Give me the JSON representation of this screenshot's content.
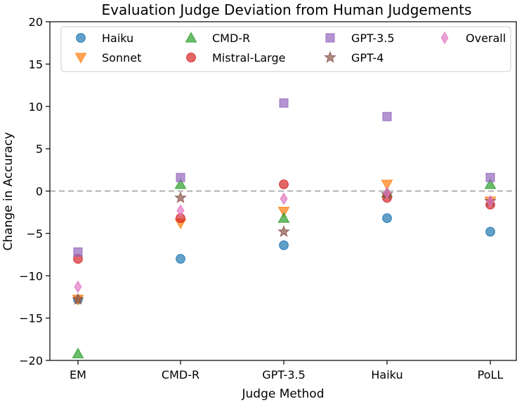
{
  "chart_data": {
    "type": "scatter",
    "title": "Evaluation Judge Deviation from Human Judgements",
    "xlabel": "Judge Method",
    "ylabel": "Change in Accuracy",
    "categories": [
      "EM",
      "CMD-R",
      "GPT-3.5",
      "Haiku",
      "PoLL"
    ],
    "ylim": [
      -20,
      20
    ],
    "yticks": [
      20,
      15,
      10,
      5,
      0,
      -5,
      -10,
      -15,
      -20
    ],
    "reference_line": 0,
    "grid": false,
    "legend_position": "top",
    "series": [
      {
        "name": "Haiku",
        "marker": "circle",
        "color": "#1f77b4",
        "values": [
          -12.8,
          -8.0,
          -6.4,
          -3.2,
          -4.8
        ]
      },
      {
        "name": "Sonnet",
        "marker": "triangle-down",
        "color": "#ff7f0e",
        "values": [
          -12.8,
          -3.8,
          -2.4,
          0.8,
          -1.2
        ]
      },
      {
        "name": "CMD-R",
        "marker": "triangle-up",
        "color": "#2ca02c",
        "values": [
          -19.2,
          0.8,
          -3.2,
          -0.2,
          0.8
        ]
      },
      {
        "name": "Mistral-Large",
        "marker": "circle",
        "color": "#d62728",
        "values": [
          -8.0,
          -3.2,
          0.8,
          -0.8,
          -1.6
        ]
      },
      {
        "name": "GPT-3.5",
        "marker": "square",
        "color": "#9467bd",
        "values": [
          -7.2,
          1.6,
          10.4,
          8.8,
          1.6
        ]
      },
      {
        "name": "GPT-4",
        "marker": "star",
        "color": "#8c564b",
        "values": [
          -12.8,
          -0.8,
          -4.8,
          -0.4,
          -1.2
        ]
      },
      {
        "name": "Overall",
        "marker": "diamond",
        "color": "#e377c2",
        "values": [
          -11.3,
          -2.3,
          -0.9,
          -0.2,
          -1.2
        ]
      }
    ]
  }
}
